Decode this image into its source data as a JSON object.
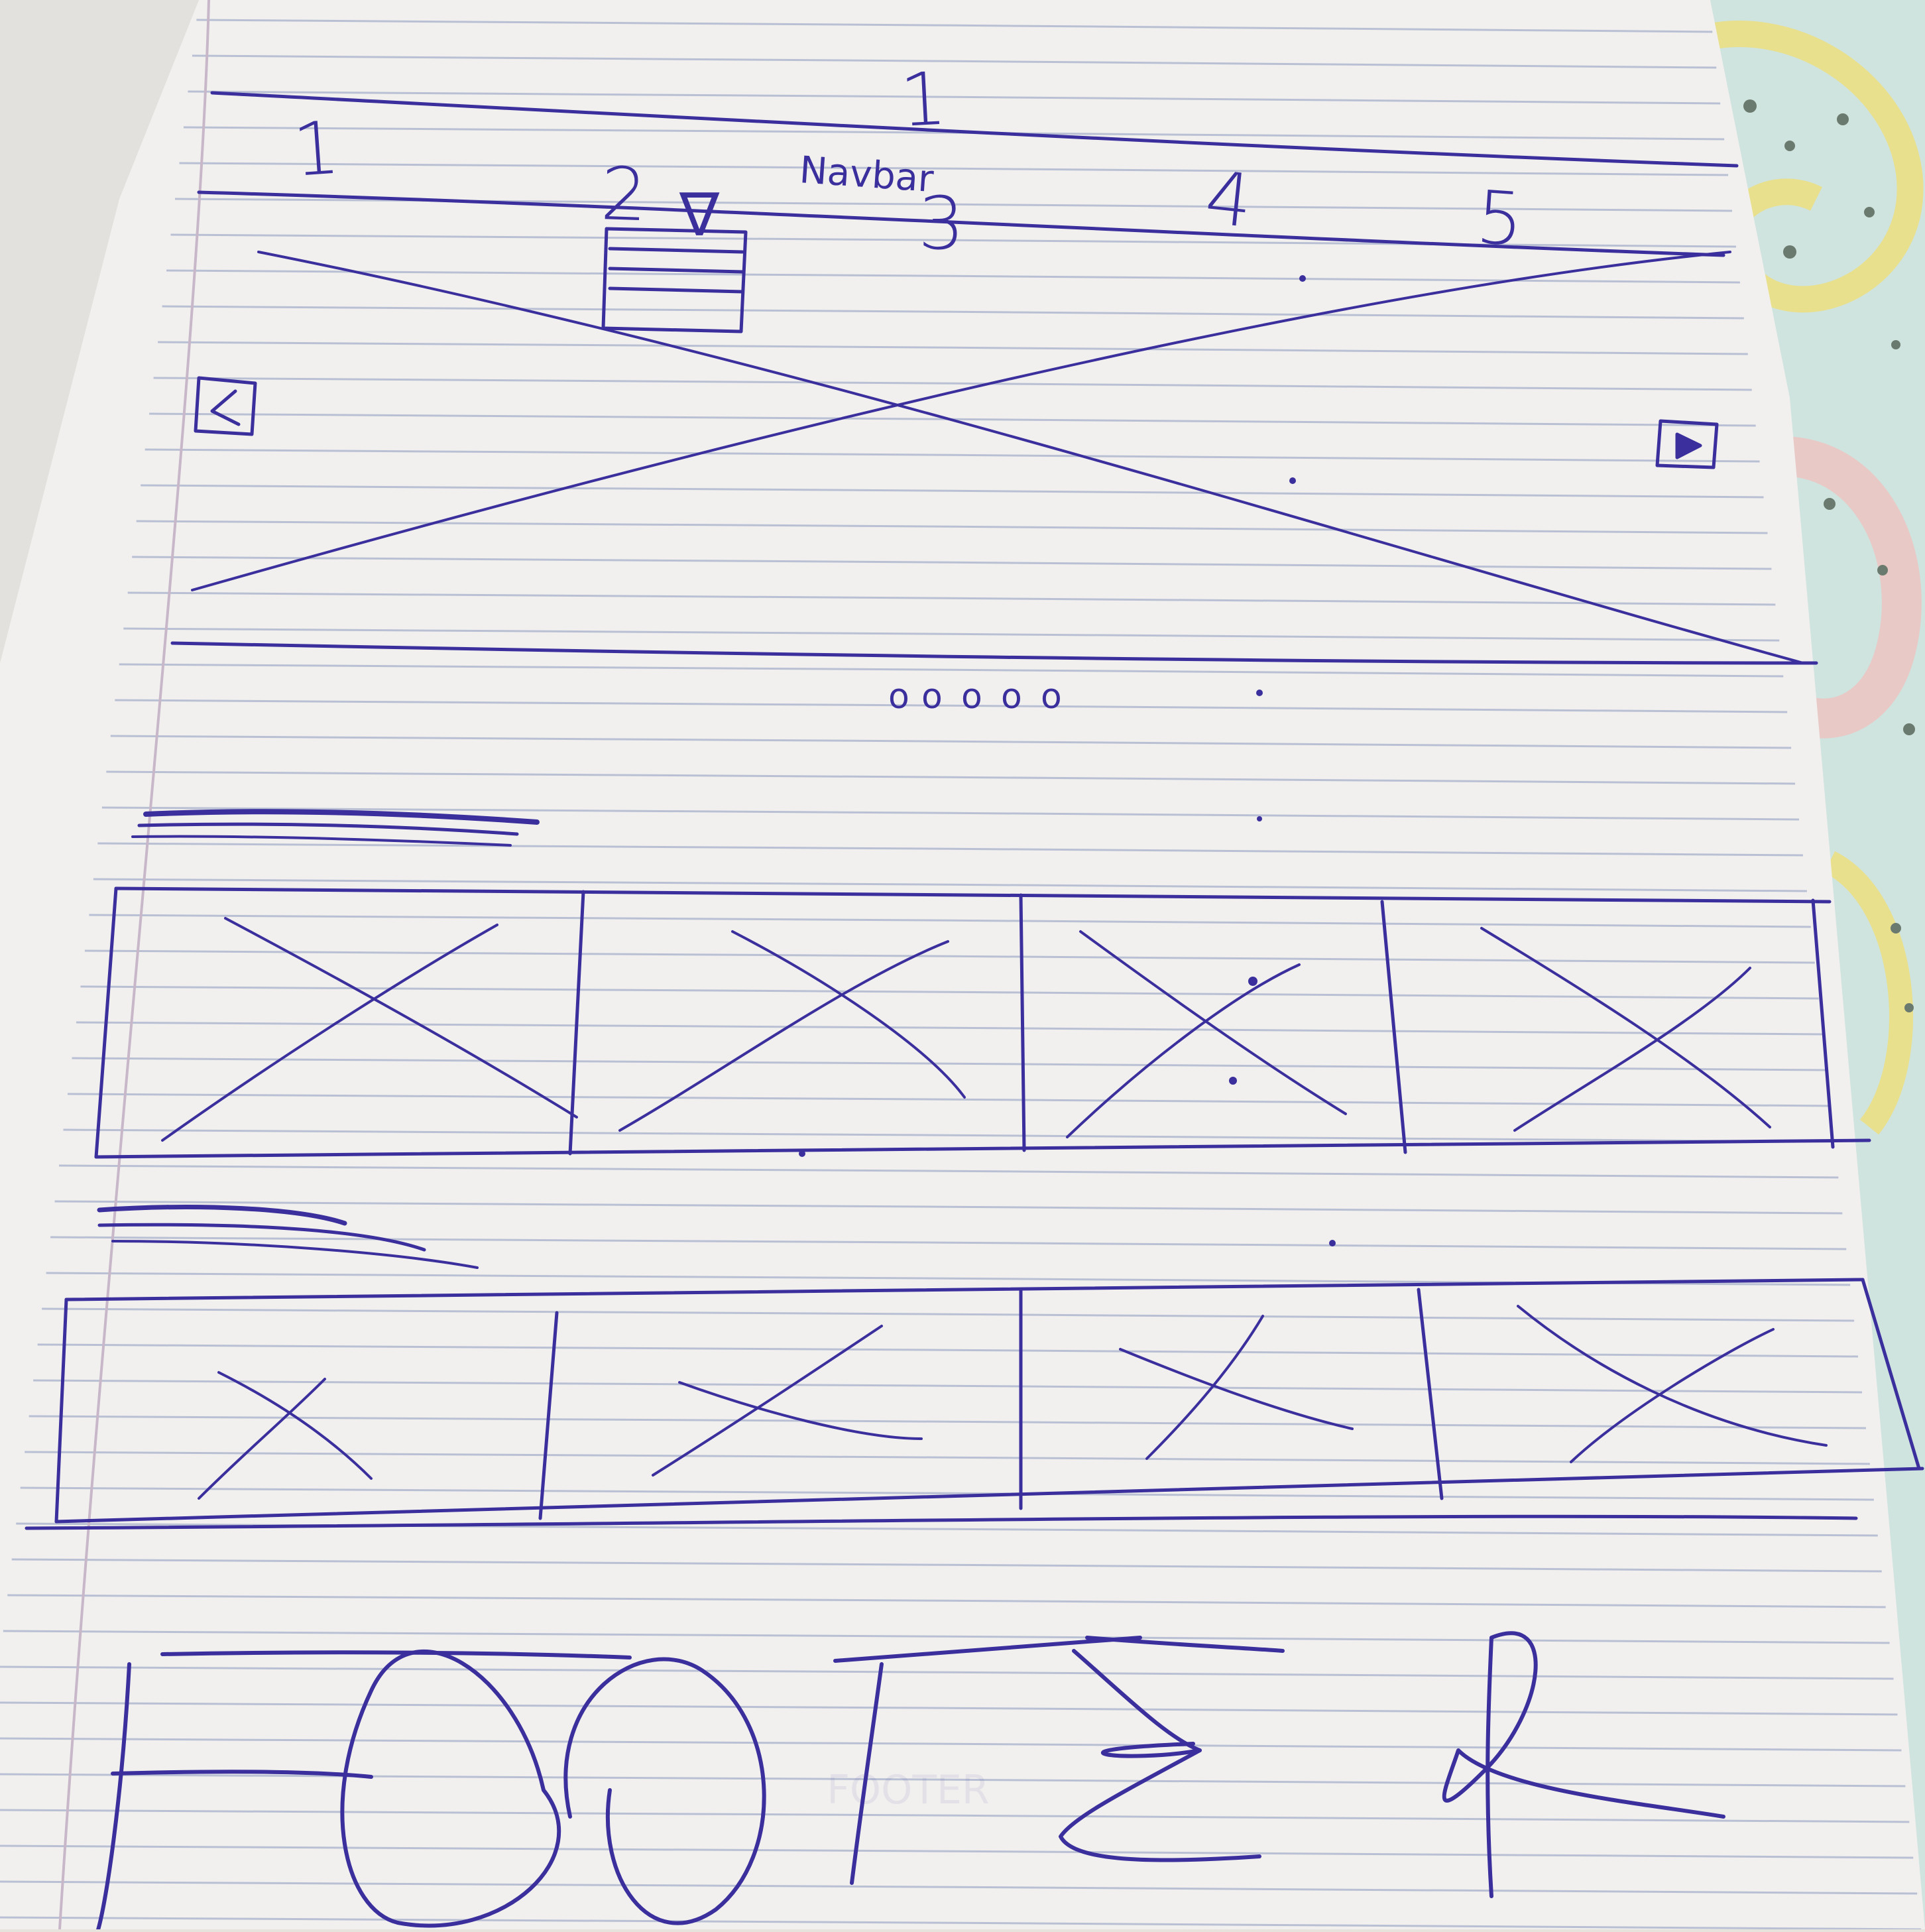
{
  "sketch": {
    "nav_title": "1",
    "navbar_label": "Navbar",
    "nav_items": [
      "1",
      "2",
      "3",
      "4",
      "5"
    ],
    "nav_dropdown_glyph": "∇",
    "carousel_dots": [
      "o",
      "o",
      "o",
      "o",
      "o"
    ],
    "footer_label": "FOOTER"
  },
  "colors": {
    "ink": "#3a2f9c",
    "paper": "#f1f0ee",
    "rule": "#b9c0d4",
    "margin_rule": "#c7b7c9",
    "fabric_base": "#cfe3df",
    "fabric_yellow": "#e9e08e",
    "fabric_pink": "#e8c9c6"
  }
}
